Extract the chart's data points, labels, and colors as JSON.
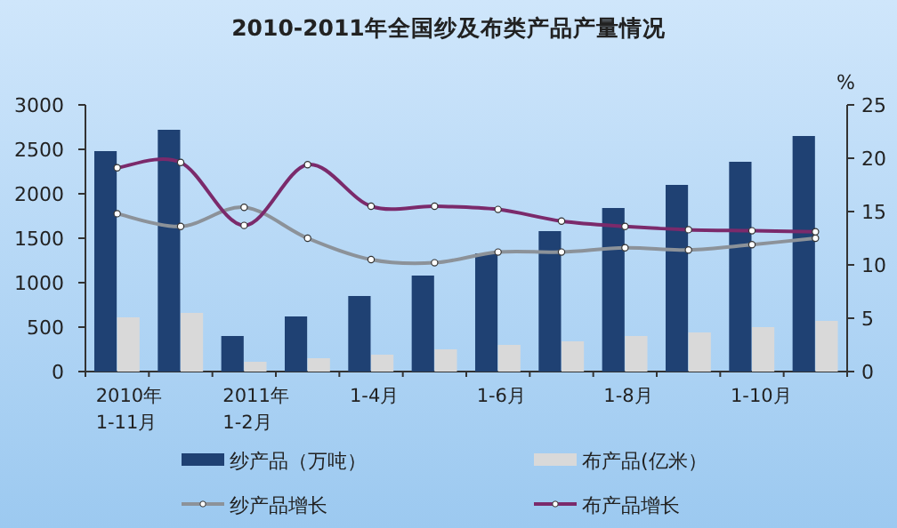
{
  "chart_data": {
    "type": "bar",
    "title": "2010-2011年全国纱及布类产品产量情况",
    "y2label": "%",
    "categories": [
      "2010年\n1-11月",
      null,
      "2011年\n1-2月",
      null,
      "1-4月",
      null,
      "1-6月",
      null,
      "1-8月",
      null,
      "1-10月",
      null
    ],
    "series": [
      {
        "name": "纱产品（万吨）",
        "color": "#1f4173",
        "values": [
          2480,
          2720,
          400,
          620,
          850,
          1080,
          1330,
          1580,
          1840,
          2100,
          2360,
          2650
        ]
      },
      {
        "name": "布产品(亿米）",
        "color": "#d9d9d9",
        "values": [
          610,
          660,
          110,
          150,
          190,
          250,
          300,
          340,
          400,
          440,
          500,
          570
        ]
      },
      {
        "name": "纱产品增长",
        "type": "line",
        "axis": "y2",
        "color": "#8c9299",
        "values": [
          14.8,
          13.6,
          15.4,
          12.5,
          10.5,
          10.2,
          11.2,
          11.2,
          11.6,
          11.4,
          11.9,
          12.5
        ]
      },
      {
        "name": "布产品增长",
        "type": "line",
        "axis": "y2",
        "color": "#7b2a6b",
        "values": [
          19.1,
          19.6,
          13.7,
          19.4,
          15.5,
          15.5,
          15.2,
          14.1,
          13.6,
          13.3,
          13.2,
          13.1
        ]
      }
    ],
    "ylim": [
      0,
      3000
    ],
    "yticks": [
      0,
      500,
      1000,
      1500,
      2000,
      2500,
      3000
    ],
    "y2lim": [
      0,
      25
    ],
    "y2ticks": [
      0,
      5,
      10,
      15,
      20,
      25
    ],
    "marker": "circle",
    "legend": "bottom",
    "grid": false
  }
}
